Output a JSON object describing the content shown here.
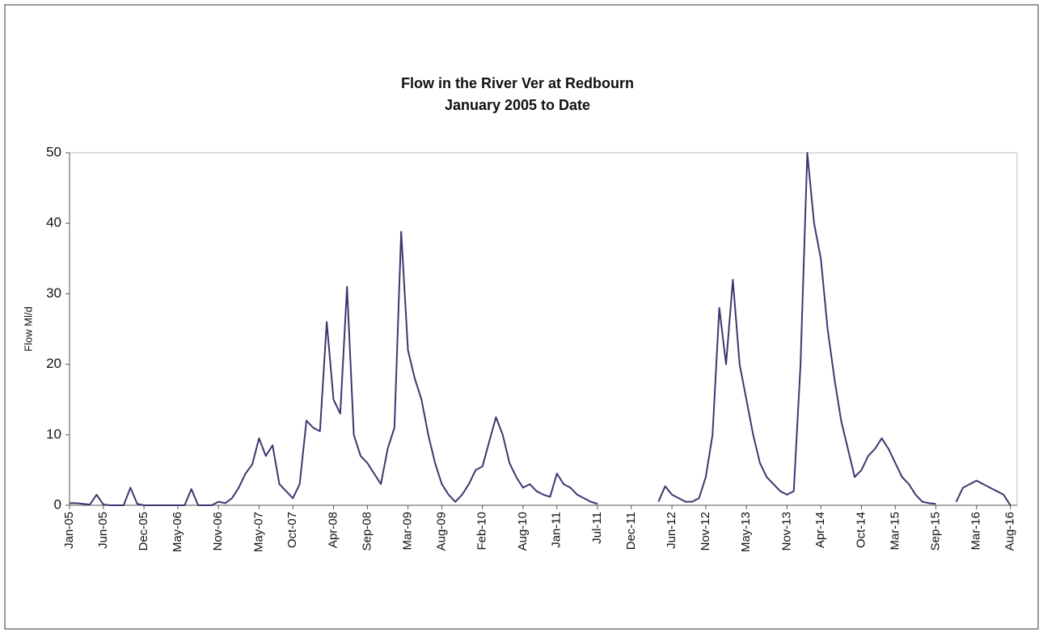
{
  "chart_data": {
    "type": "line",
    "title": "Flow in the River Ver at Redbourn",
    "subtitle": "January 2005 to Date",
    "y_label": "Flow Ml/d",
    "x": [
      "2005-01",
      "2005-02",
      "2005-03",
      "2005-04",
      "2005-05",
      "2005-06",
      "2005-07",
      "2005-08",
      "2005-09",
      "2005-10",
      "2005-11",
      "2005-12",
      "2006-01",
      "2006-02",
      "2006-03",
      "2006-04",
      "2006-05",
      "2006-06",
      "2006-07",
      "2006-08",
      "2006-09",
      "2006-10",
      "2006-11",
      "2006-12",
      "2007-01",
      "2007-02",
      "2007-03",
      "2007-04",
      "2007-05",
      "2007-06",
      "2007-07",
      "2007-08",
      "2007-09",
      "2007-10",
      "2007-11",
      "2007-12",
      "2008-01",
      "2008-02",
      "2008-03",
      "2008-04",
      "2008-05",
      "2008-06",
      "2008-07",
      "2008-08",
      "2008-09",
      "2008-10",
      "2008-11",
      "2008-12",
      "2009-01",
      "2009-02",
      "2009-03",
      "2009-04",
      "2009-05",
      "2009-06",
      "2009-07",
      "2009-08",
      "2009-09",
      "2009-10",
      "2009-11",
      "2009-12",
      "2010-01",
      "2010-02",
      "2010-03",
      "2010-04",
      "2010-05",
      "2010-06",
      "2010-07",
      "2010-08",
      "2010-09",
      "2010-10",
      "2010-11",
      "2010-12",
      "2011-01",
      "2011-02",
      "2011-03",
      "2011-04",
      "2011-05",
      "2011-06",
      "2011-07",
      "2011-08",
      "2011-09",
      "2011-10",
      "2011-11",
      "2011-12",
      "2012-01",
      "2012-02",
      "2012-03",
      "2012-04",
      "2012-05",
      "2012-06",
      "2012-07",
      "2012-08",
      "2012-09",
      "2012-10",
      "2012-11",
      "2012-12",
      "2013-01",
      "2013-02",
      "2013-03",
      "2013-04",
      "2013-05",
      "2013-06",
      "2013-07",
      "2013-08",
      "2013-09",
      "2013-10",
      "2013-11",
      "2013-12",
      "2014-01",
      "2014-02",
      "2014-03",
      "2014-04",
      "2014-05",
      "2014-06",
      "2014-07",
      "2014-08",
      "2014-09",
      "2014-10",
      "2014-11",
      "2014-12",
      "2015-01",
      "2015-02",
      "2015-03",
      "2015-04",
      "2015-05",
      "2015-06",
      "2015-07",
      "2015-08",
      "2015-09",
      "2015-10",
      "2015-11",
      "2015-12",
      "2016-01",
      "2016-02",
      "2016-03",
      "2016-04",
      "2016-05",
      "2016-06",
      "2016-07",
      "2016-08"
    ],
    "series": [
      {
        "name": "Flow",
        "color": "#3b3870",
        "values": [
          0.3,
          0.3,
          0.2,
          0.1,
          1.5,
          0.1,
          0,
          0,
          0,
          2.5,
          0.2,
          0,
          0,
          0,
          0,
          0,
          0,
          0,
          2.3,
          0,
          0,
          0,
          0.5,
          0.3,
          1,
          2.5,
          4.5,
          5.8,
          9.5,
          7,
          8.5,
          3,
          2,
          1,
          3,
          12,
          11,
          10.5,
          26,
          15,
          13,
          31,
          10,
          7,
          6,
          4.5,
          3,
          8,
          11,
          38.8,
          22,
          18,
          15,
          10,
          6,
          3,
          1.5,
          0.5,
          1.5,
          3,
          5,
          5.5,
          9,
          12.5,
          10,
          6,
          4,
          2.5,
          3,
          2,
          1.5,
          1.2,
          4.5,
          3,
          2.5,
          1.5,
          1,
          0.5,
          0.2,
          null,
          null,
          null,
          null,
          null,
          null,
          null,
          null,
          0.5,
          2.7,
          1.5,
          1,
          0.5,
          0.5,
          1,
          4,
          10,
          28,
          20,
          32,
          20,
          15,
          10,
          6,
          4,
          3,
          2,
          1.5,
          2,
          20,
          50,
          40,
          35,
          25,
          18,
          12,
          8,
          4,
          5,
          7,
          8,
          9.5,
          8,
          6,
          4,
          3,
          1.5,
          0.5,
          0.3,
          0.2,
          null,
          null,
          0.5,
          2.5,
          3,
          3.5,
          3,
          2.5,
          2,
          1.5,
          0
        ]
      }
    ],
    "xlim": [
      "2005-01",
      "2016-09"
    ],
    "xticks": [
      {
        "value": "2005-01",
        "label": "Jan-05"
      },
      {
        "value": "2005-06",
        "label": "Jun-05"
      },
      {
        "value": "2005-12",
        "label": "Dec-05"
      },
      {
        "value": "2006-05",
        "label": "May-06"
      },
      {
        "value": "2006-11",
        "label": "Nov-06"
      },
      {
        "value": "2007-05",
        "label": "May-07"
      },
      {
        "value": "2007-10",
        "label": "Oct-07"
      },
      {
        "value": "2008-04",
        "label": "Apr-08"
      },
      {
        "value": "2008-09",
        "label": "Sep-08"
      },
      {
        "value": "2009-03",
        "label": "Mar-09"
      },
      {
        "value": "2009-08",
        "label": "Aug-09"
      },
      {
        "value": "2010-02",
        "label": "Feb-10"
      },
      {
        "value": "2010-08",
        "label": "Aug-10"
      },
      {
        "value": "2011-01",
        "label": "Jan-11"
      },
      {
        "value": "2011-07",
        "label": "Jul-11"
      },
      {
        "value": "2011-12",
        "label": "Dec-11"
      },
      {
        "value": "2012-06",
        "label": "Jun-12"
      },
      {
        "value": "2012-11",
        "label": "Nov-12"
      },
      {
        "value": "2013-05",
        "label": "May-13"
      },
      {
        "value": "2013-11",
        "label": "Nov-13"
      },
      {
        "value": "2014-04",
        "label": "Apr-14"
      },
      {
        "value": "2014-10",
        "label": "Oct-14"
      },
      {
        "value": "2015-03",
        "label": "Mar-15"
      },
      {
        "value": "2015-09",
        "label": "Sep-15"
      },
      {
        "value": "2016-03",
        "label": "Mar-16"
      },
      {
        "value": "2016-08",
        "label": "Aug-16"
      }
    ],
    "ylim": [
      0,
      50
    ],
    "yticks": [
      0,
      10,
      20,
      30,
      40,
      50
    ],
    "grid": false
  }
}
